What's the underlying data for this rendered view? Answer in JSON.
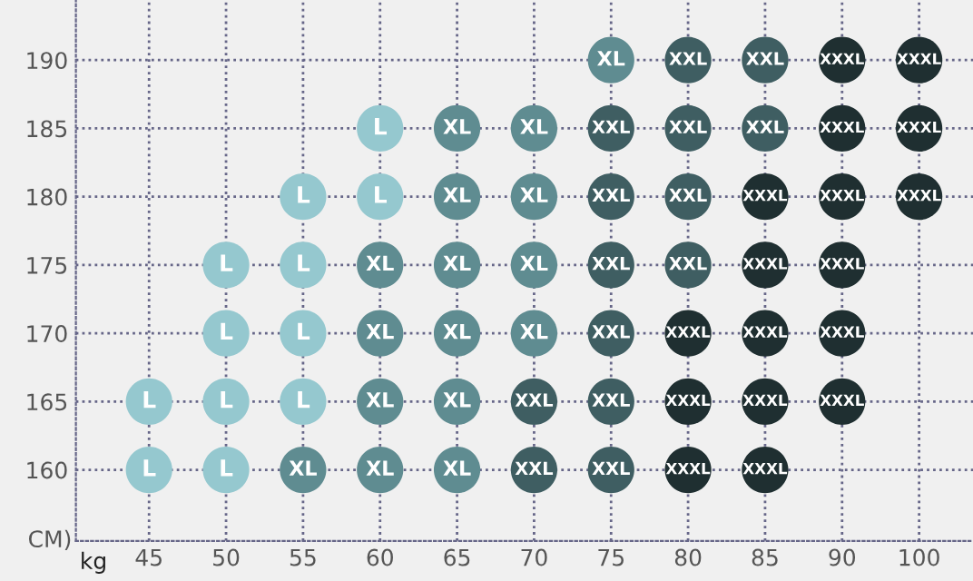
{
  "chart_data": {
    "type": "scatter",
    "xlabel": "kg",
    "ylabel": "CM)",
    "categories": [
      "45",
      "50",
      "55",
      "60",
      "65",
      "70",
      "75",
      "80",
      "85",
      "90",
      "100"
    ],
    "ylim": [
      154.8,
      194.4
    ],
    "yticks": [
      160,
      165,
      170,
      175,
      180,
      185,
      190
    ],
    "grid": true,
    "marker": "circle",
    "legend": false,
    "series": [
      {
        "name": "L",
        "color": "#95c8cf",
        "x": [
          "45",
          "45",
          "50",
          "50",
          "50",
          "50",
          "55",
          "55",
          "55",
          "55",
          "60",
          "60"
        ],
        "values": [
          165,
          160,
          175,
          170,
          165,
          160,
          180,
          175,
          170,
          165,
          185,
          180
        ]
      },
      {
        "name": "XL",
        "color": "#5f8c91",
        "x": [
          "55",
          "60",
          "60",
          "60",
          "60",
          "65",
          "65",
          "65",
          "65",
          "65",
          "65",
          "70",
          "70",
          "70",
          "70",
          "75"
        ],
        "values": [
          160,
          175,
          170,
          165,
          160,
          185,
          180,
          175,
          170,
          165,
          160,
          185,
          180,
          175,
          170,
          190
        ]
      },
      {
        "name": "XXL",
        "color": "#3f5e62",
        "x": [
          "70",
          "70",
          "75",
          "75",
          "75",
          "75",
          "75",
          "75",
          "80",
          "80",
          "80",
          "80",
          "85",
          "85"
        ],
        "values": [
          165,
          160,
          185,
          180,
          175,
          170,
          165,
          160,
          190,
          185,
          180,
          175,
          190,
          185
        ]
      },
      {
        "name": "XXXL",
        "color": "#1f2f31",
        "x": [
          "80",
          "80",
          "80",
          "85",
          "85",
          "85",
          "85",
          "85",
          "90",
          "90",
          "90",
          "90",
          "90",
          "90",
          "100",
          "100",
          "100"
        ],
        "values": [
          170,
          165,
          160,
          180,
          175,
          170,
          165,
          160,
          190,
          185,
          180,
          175,
          170,
          165,
          190,
          185,
          180
        ]
      }
    ]
  }
}
